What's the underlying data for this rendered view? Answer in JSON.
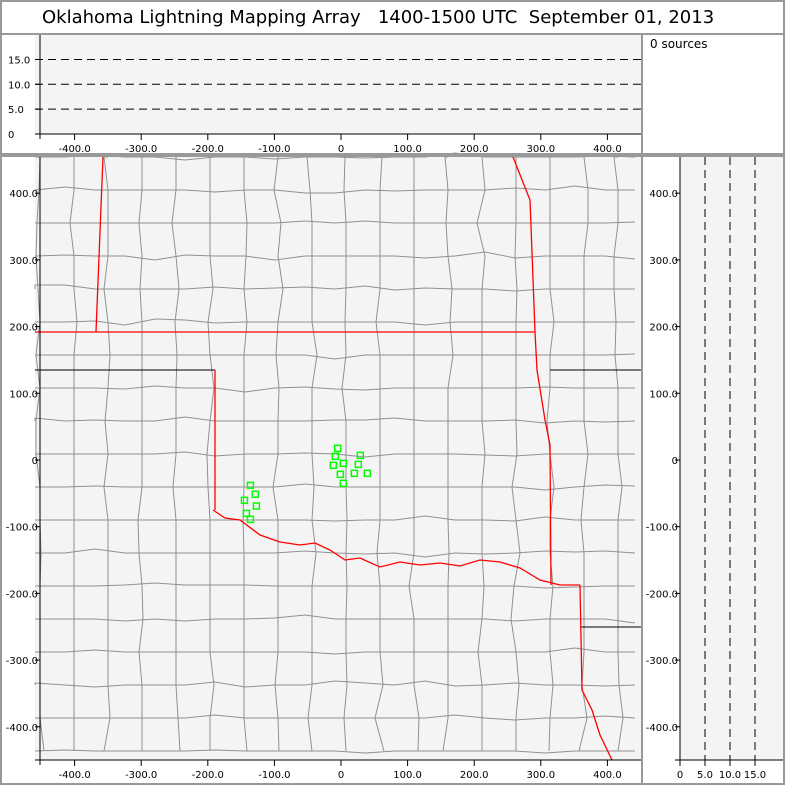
{
  "title": "Oklahoma Lightning Mapping Array   1400-1500 UTC  September 01, 2013",
  "sources_label": "0 sources",
  "colors": {
    "background": "#f4f4f4",
    "state_border": "#ff0000",
    "county_border": "#909090",
    "station": "#00ff00",
    "frame": "#999999"
  },
  "altitude_panel": {
    "y_ticks": [
      "0",
      "5.0",
      "10.0",
      "15.0"
    ],
    "x_ticks": [
      "-400.0",
      "-300.0",
      "-200.0",
      "-100.0",
      "0",
      "100.0",
      "200.0",
      "300.0",
      "400.0"
    ],
    "dashed_levels_km": [
      5,
      10,
      15
    ]
  },
  "plan_panel": {
    "x_ticks": [
      "-400.0",
      "-300.0",
      "-200.0",
      "-100.0",
      "0",
      "100.0",
      "200.0",
      "300.0",
      "400.0"
    ],
    "y_ticks": [
      "400.0",
      "300.0",
      "200.0",
      "100.0",
      "0",
      "-100.0",
      "-200.0",
      "-300.0",
      "-400.0"
    ]
  },
  "side_panel": {
    "x_ticks": [
      "0",
      "5.0",
      "10.0",
      "15.0"
    ],
    "y_ticks": [
      "400.0",
      "300.0",
      "200.0",
      "100.0",
      "0",
      "-100.0",
      "-200.0",
      "-300.0",
      "-400.0"
    ]
  },
  "stations_km": [
    [
      -5,
      17.5
    ],
    [
      -8.6,
      5.5
    ],
    [
      3.5,
      -5
    ],
    [
      -11.6,
      -8
    ],
    [
      29,
      7
    ],
    [
      26,
      -6.5
    ],
    [
      20,
      -20
    ],
    [
      39.5,
      -20
    ],
    [
      -1,
      -21.5
    ],
    [
      3.5,
      -35
    ],
    [
      -136,
      -38
    ],
    [
      -128.7,
      -51.4
    ],
    [
      -145,
      -60.4
    ],
    [
      -127,
      -69
    ],
    [
      -142,
      -80
    ],
    [
      -136,
      -89
    ]
  ]
}
